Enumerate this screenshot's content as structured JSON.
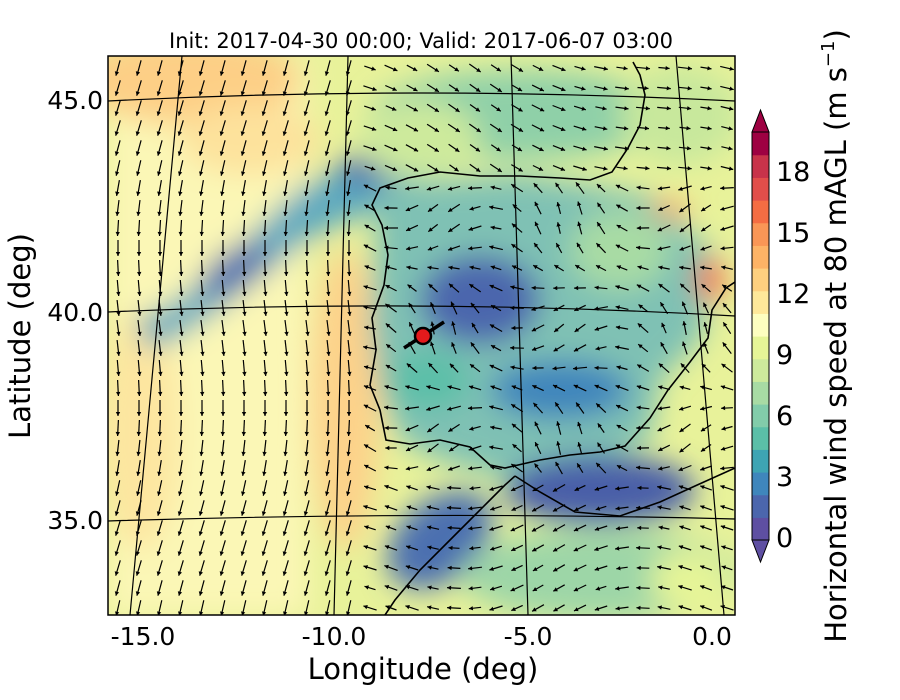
{
  "title": "Init: 2017-04-30 00:00; Valid: 2017-06-07 03:00",
  "xlabel": "Longitude (deg)",
  "ylabel": "Latitude (deg)",
  "colorbar_label": "Horizontal wind speed at 80 mAGL (m s",
  "colorbar_label_sup": "−1",
  "colorbar_label_end": ")",
  "xticks": [
    "-15.0",
    "-10.0",
    "-5.0",
    "0.0"
  ],
  "yticks": [
    "45.0",
    "40.0",
    "35.0"
  ],
  "colorbar_ticks": [
    "0",
    "3",
    "6",
    "9",
    "12",
    "15",
    "18"
  ],
  "colorbar_colors": [
    "#5e4fa2",
    "#4b66ad",
    "#3f86bc",
    "#3ea4b3",
    "#5bbfa8",
    "#82ccaa",
    "#a8dba4",
    "#cdea9c",
    "#e6f597",
    "#fdfec0",
    "#fee89a",
    "#fed07f",
    "#fdb366",
    "#f99656",
    "#f46d43",
    "#e14e4a",
    "#c8334a",
    "#9e0142"
  ],
  "chart_data": {
    "type": "heatmap",
    "variable": "Horizontal wind speed at 80 mAGL",
    "units": "m s-1",
    "colorbar_range": [
      0,
      20
    ],
    "xlim": [
      -15.9,
      0.2
    ],
    "ylim": [
      32.8,
      46.1
    ],
    "point_marker": {
      "lon": -7.6,
      "lat": 39.3
    }
  }
}
